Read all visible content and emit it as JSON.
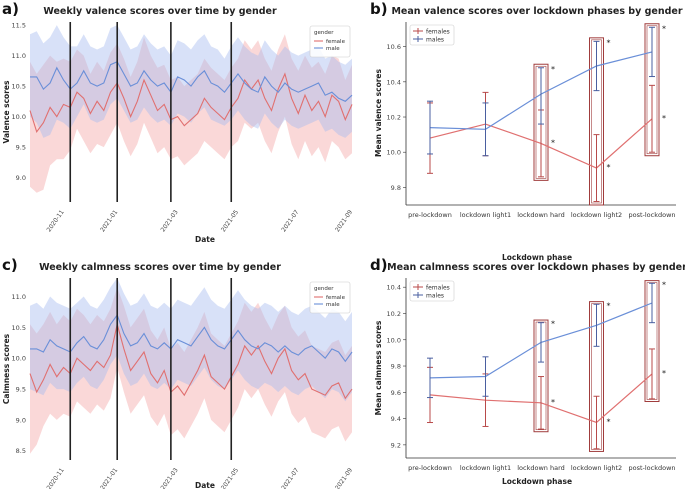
{
  "panel_labels": [
    "a)",
    "b)",
    "c)",
    "d)"
  ],
  "colors": {
    "female": "#e07070",
    "male": "#6a8fd8",
    "female_band": "#f4a8a8",
    "male_band": "#a8bcf0",
    "females_err": "#b84a4a",
    "males_err": "#4a5fa0",
    "box": "#a03c3c"
  },
  "chart_data": [
    {
      "type": "line",
      "title": "Weekly valence scores over time by gender",
      "xlabel": "Date",
      "ylabel": "Valence scores",
      "ylim": [
        8.6,
        11.55
      ],
      "yticks": [
        9.0,
        9.5,
        10.0,
        10.5,
        11.0,
        11.5
      ],
      "ytick_labels": [
        "9.0",
        "9.5",
        "10.0",
        "10.5",
        "11.0",
        "11.5"
      ],
      "xlim": [
        0,
        48
      ],
      "xticks": [
        4,
        12,
        21,
        30,
        39,
        47
      ],
      "xtick_labels": [
        "2020-11",
        "2021-01",
        "2021-03",
        "2021-05",
        "2021-07",
        "2021-09"
      ],
      "vlines": [
        6,
        13,
        21,
        30
      ],
      "legend": {
        "title": "gender",
        "entries": [
          "female",
          "male"
        ],
        "position": "top-right"
      },
      "series": [
        {
          "name": "female",
          "values": [
            10.1,
            9.75,
            9.9,
            10.15,
            10.0,
            10.2,
            10.15,
            10.4,
            10.3,
            10.05,
            10.25,
            10.1,
            10.4,
            10.55,
            10.3,
            10.0,
            10.25,
            10.6,
            10.35,
            10.1,
            10.2,
            9.95,
            10.0,
            9.85,
            9.95,
            10.05,
            10.3,
            10.15,
            10.05,
            9.95,
            10.15,
            10.3,
            10.6,
            10.45,
            10.6,
            10.3,
            10.1,
            10.45,
            10.7,
            10.3,
            10.05,
            10.35,
            10.1,
            10.25,
            10.0,
            10.35,
            10.25,
            9.95,
            10.2
          ],
          "lower": [
            8.85,
            8.75,
            8.8,
            9.2,
            9.3,
            9.3,
            9.45,
            9.8,
            9.6,
            9.4,
            9.55,
            9.5,
            9.7,
            9.9,
            9.6,
            9.35,
            9.55,
            9.9,
            9.65,
            9.4,
            9.5,
            9.3,
            9.35,
            9.2,
            9.3,
            9.4,
            9.6,
            9.5,
            9.4,
            9.3,
            9.5,
            9.6,
            9.9,
            9.8,
            9.9,
            9.6,
            9.4,
            9.75,
            10.0,
            9.55,
            9.3,
            9.6,
            9.35,
            9.5,
            9.25,
            9.6,
            9.5,
            9.3,
            9.4
          ],
          "upper": [
            10.9,
            10.7,
            10.85,
            11.0,
            10.9,
            10.95,
            10.9,
            11.1,
            11.0,
            10.7,
            10.9,
            10.75,
            11.05,
            11.2,
            10.95,
            10.65,
            10.9,
            11.3,
            11.0,
            10.8,
            10.85,
            10.6,
            10.65,
            10.5,
            10.6,
            10.7,
            10.95,
            10.8,
            10.7,
            10.6,
            10.8,
            10.95,
            11.25,
            11.1,
            11.25,
            10.95,
            10.75,
            11.1,
            11.35,
            10.95,
            10.75,
            11.0,
            10.8,
            10.9,
            10.7,
            11.0,
            10.95,
            10.6,
            10.85
          ]
        },
        {
          "name": "male",
          "values": [
            10.65,
            10.65,
            10.45,
            10.55,
            10.8,
            10.6,
            10.45,
            10.55,
            10.75,
            10.55,
            10.5,
            10.55,
            10.85,
            10.9,
            10.7,
            10.5,
            10.55,
            10.75,
            10.6,
            10.5,
            10.55,
            10.4,
            10.65,
            10.6,
            10.5,
            10.65,
            10.75,
            10.55,
            10.5,
            10.4,
            10.55,
            10.7,
            10.55,
            10.45,
            10.4,
            10.65,
            10.5,
            10.4,
            10.55,
            10.45,
            10.4,
            10.45,
            10.5,
            10.55,
            10.35,
            10.4,
            10.3,
            10.25,
            10.35
          ],
          "lower": [
            10.0,
            9.9,
            9.65,
            9.7,
            9.95,
            9.9,
            9.8,
            10.0,
            10.2,
            9.95,
            9.9,
            9.95,
            10.2,
            10.3,
            10.1,
            9.9,
            9.95,
            10.15,
            10.0,
            9.9,
            9.95,
            9.85,
            10.05,
            10.0,
            9.9,
            10.05,
            10.15,
            9.95,
            9.9,
            9.85,
            9.95,
            10.1,
            9.95,
            9.85,
            9.8,
            10.05,
            9.9,
            9.8,
            9.95,
            9.85,
            9.8,
            9.85,
            9.9,
            9.95,
            9.75,
            9.8,
            9.7,
            9.65,
            9.75
          ],
          "upper": [
            11.35,
            11.4,
            11.2,
            11.3,
            11.5,
            11.3,
            11.15,
            11.15,
            11.35,
            11.15,
            11.1,
            11.15,
            11.45,
            11.5,
            11.3,
            11.1,
            11.15,
            11.35,
            11.2,
            11.1,
            11.15,
            11.0,
            11.25,
            11.2,
            11.1,
            11.25,
            11.35,
            11.15,
            11.1,
            10.95,
            11.15,
            11.3,
            11.15,
            11.05,
            11.0,
            11.25,
            11.1,
            11.0,
            11.15,
            11.05,
            11.0,
            11.05,
            11.1,
            11.15,
            10.95,
            11.0,
            10.9,
            10.85,
            10.95
          ]
        }
      ]
    },
    {
      "type": "line",
      "title": "Mean valence scores over lockdown phases by gender",
      "xlabel": "Lockdown phase",
      "ylabel": "Mean valence scores",
      "categories": [
        "pre-lockdown",
        "lockdown light1",
        "lockdown hard",
        "lockdown light2",
        "post-lockdown"
      ],
      "ylim": [
        9.7,
        10.74
      ],
      "yticks": [
        9.8,
        10.0,
        10.2,
        10.4,
        10.6
      ],
      "ytick_labels": [
        "9.8",
        "10.0",
        "10.2",
        "10.4",
        "10.6"
      ],
      "legend": {
        "entries": [
          "females",
          "males"
        ],
        "position": "top-left"
      },
      "significance_marker": "*",
      "highlight_boxes": [
        2,
        3,
        4
      ],
      "series": [
        {
          "name": "females",
          "values": [
            10.08,
            10.16,
            10.05,
            9.91,
            10.19
          ],
          "lower": [
            9.88,
            9.98,
            9.86,
            9.72,
            10.0
          ],
          "upper": [
            10.28,
            10.34,
            10.24,
            10.1,
            10.38
          ]
        },
        {
          "name": "males",
          "values": [
            10.14,
            10.13,
            10.33,
            10.49,
            10.57
          ],
          "lower": [
            9.99,
            9.98,
            10.16,
            10.35,
            10.43
          ],
          "upper": [
            10.29,
            10.28,
            10.48,
            10.63,
            10.71
          ]
        }
      ]
    },
    {
      "type": "line",
      "title": "Weekly calmness scores over time by gender",
      "xlabel": "Date",
      "ylabel": "Calmness scores",
      "ylim": [
        8.35,
        11.3
      ],
      "yticks": [
        8.5,
        9.0,
        9.5,
        10.0,
        10.5,
        11.0
      ],
      "ytick_labels": [
        "8.5",
        "9.0",
        "9.5",
        "10.0",
        "10.5",
        "11.0"
      ],
      "xlim": [
        0,
        48
      ],
      "xticks": [
        4,
        12,
        21,
        30,
        39,
        47
      ],
      "xtick_labels": [
        "2020-11",
        "2021-01",
        "2021-03",
        "2021-05",
        "2021-07",
        "2021-09"
      ],
      "vlines": [
        6,
        13,
        21,
        30
      ],
      "legend": {
        "title": "gender",
        "entries": [
          "female",
          "male"
        ],
        "position": "top-right"
      },
      "series": [
        {
          "name": "female",
          "values": [
            9.75,
            9.45,
            9.65,
            9.9,
            9.7,
            9.85,
            9.75,
            10.0,
            9.9,
            9.8,
            9.95,
            9.85,
            10.05,
            10.55,
            10.15,
            9.8,
            9.95,
            10.1,
            9.75,
            9.6,
            9.8,
            9.45,
            9.55,
            9.4,
            9.6,
            9.8,
            10.05,
            9.7,
            9.6,
            9.5,
            9.7,
            9.9,
            10.2,
            10.05,
            10.2,
            9.95,
            9.75,
            10.0,
            10.15,
            9.8,
            9.65,
            9.75,
            9.5,
            9.45,
            9.4,
            9.55,
            9.6,
            9.35,
            9.5
          ],
          "lower": [
            8.45,
            8.6,
            8.9,
            9.1,
            9.0,
            9.1,
            9.05,
            9.3,
            9.2,
            9.1,
            9.25,
            9.15,
            9.35,
            9.85,
            9.45,
            9.1,
            9.25,
            9.4,
            9.05,
            8.9,
            9.1,
            8.75,
            8.85,
            8.7,
            8.9,
            9.1,
            9.35,
            9.0,
            8.9,
            8.8,
            9.0,
            9.2,
            9.5,
            9.35,
            9.5,
            9.25,
            9.05,
            9.3,
            9.45,
            9.1,
            8.95,
            9.05,
            8.8,
            8.75,
            8.7,
            8.85,
            8.9,
            8.65,
            8.8
          ],
          "upper": [
            10.55,
            10.4,
            10.55,
            10.75,
            10.55,
            10.7,
            10.6,
            10.8,
            10.7,
            10.55,
            10.7,
            10.6,
            10.8,
            11.15,
            10.85,
            10.5,
            10.65,
            10.8,
            10.45,
            10.3,
            10.5,
            10.15,
            10.25,
            10.1,
            10.3,
            10.5,
            10.75,
            10.4,
            10.3,
            10.2,
            10.4,
            10.6,
            10.9,
            10.75,
            10.9,
            10.65,
            10.45,
            10.7,
            10.85,
            10.5,
            10.35,
            10.45,
            10.2,
            10.15,
            10.1,
            10.25,
            10.3,
            10.05,
            10.2
          ]
        },
        {
          "name": "male",
          "values": [
            10.15,
            10.15,
            10.1,
            10.3,
            10.2,
            10.15,
            10.1,
            10.25,
            10.35,
            10.2,
            10.15,
            10.3,
            10.55,
            10.7,
            10.4,
            10.2,
            10.25,
            10.4,
            10.2,
            10.15,
            10.25,
            10.15,
            10.3,
            10.25,
            10.2,
            10.35,
            10.5,
            10.3,
            10.2,
            10.15,
            10.3,
            10.45,
            10.3,
            10.2,
            10.15,
            10.25,
            10.2,
            10.1,
            10.2,
            10.1,
            10.05,
            10.15,
            10.2,
            10.1,
            10.0,
            10.15,
            10.1,
            9.95,
            10.1
          ],
          "lower": [
            9.5,
            9.45,
            9.4,
            9.6,
            9.5,
            9.5,
            9.45,
            9.6,
            9.7,
            9.55,
            9.5,
            9.65,
            9.9,
            10.05,
            9.75,
            9.55,
            9.6,
            9.75,
            9.55,
            9.5,
            9.6,
            9.5,
            9.65,
            9.6,
            9.55,
            9.7,
            9.85,
            9.65,
            9.55,
            9.5,
            9.65,
            9.8,
            9.65,
            9.55,
            9.5,
            9.6,
            9.55,
            9.45,
            9.55,
            9.45,
            9.4,
            9.5,
            9.55,
            9.45,
            9.35,
            9.5,
            9.45,
            9.3,
            9.45
          ],
          "upper": [
            10.85,
            10.9,
            10.8,
            11.0,
            10.9,
            10.85,
            10.8,
            10.9,
            11.0,
            10.85,
            10.8,
            10.95,
            11.15,
            11.3,
            11.05,
            10.85,
            10.9,
            11.05,
            10.85,
            10.8,
            10.9,
            10.8,
            10.95,
            10.9,
            10.85,
            11.0,
            11.15,
            10.95,
            10.85,
            10.8,
            10.95,
            11.1,
            10.95,
            10.85,
            10.8,
            10.9,
            10.85,
            10.75,
            10.85,
            10.75,
            10.7,
            10.8,
            10.85,
            10.75,
            10.65,
            10.8,
            10.75,
            10.6,
            10.75
          ]
        }
      ]
    },
    {
      "type": "line",
      "title": "Mean calmness scores over lockdown phases by gender",
      "xlabel": "Lockdown phase",
      "ylabel": "Mean calmness scores",
      "categories": [
        "pre-lockdown",
        "lockdown light1",
        "lockdown hard",
        "lockdown light2",
        "post-lockdown"
      ],
      "ylim": [
        9.1,
        10.47
      ],
      "yticks": [
        9.2,
        9.4,
        9.6,
        9.8,
        10.0,
        10.2,
        10.4
      ],
      "ytick_labels": [
        "9.2",
        "9.4",
        "9.6",
        "9.8",
        "10.0",
        "10.2",
        "10.4"
      ],
      "legend": {
        "entries": [
          "females",
          "males"
        ],
        "position": "top-left"
      },
      "significance_marker": "*",
      "highlight_boxes": [
        2,
        3,
        4
      ],
      "series": [
        {
          "name": "females",
          "values": [
            9.58,
            9.54,
            9.52,
            9.37,
            9.74
          ],
          "lower": [
            9.37,
            9.34,
            9.32,
            9.17,
            9.55
          ],
          "upper": [
            9.79,
            9.74,
            9.72,
            9.57,
            9.93
          ]
        },
        {
          "name": "males",
          "values": [
            9.71,
            9.72,
            9.98,
            10.11,
            10.28
          ],
          "lower": [
            9.56,
            9.57,
            9.83,
            9.95,
            10.13
          ],
          "upper": [
            9.86,
            9.87,
            10.13,
            10.27,
            10.43
          ]
        }
      ]
    }
  ]
}
